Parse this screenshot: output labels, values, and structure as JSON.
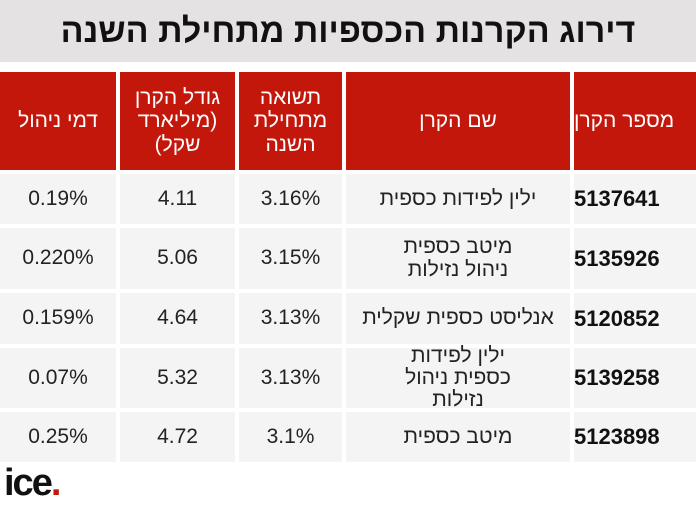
{
  "title": "דירוג הקרנות הכספיות מתחילת השנה",
  "colors": {
    "header": "#c4170c",
    "title_bg": "#e4e2e2",
    "cell_bg": "#f4f4f4"
  },
  "headers": [
    "מספר הקרן",
    "שם הקרן",
    "תשואה מתחילת השנה",
    "גודל הקרן (מיליארד שקל)",
    "דמי ניהול"
  ],
  "rows": [
    {
      "id": "5137641",
      "name": "ילין לפידות כספית",
      "ytd": "3.16%",
      "size": "4.11",
      "fee": "0.19%"
    },
    {
      "id": "5135926",
      "name": "מיטב כספית ניהול נזילות",
      "ytd": "3.15%",
      "size": "5.06",
      "fee": "0.220%"
    },
    {
      "id": "5120852",
      "name": "אנליסט כספית שקלית",
      "ytd": "3.13%",
      "size": "4.64",
      "fee": "0.159%"
    },
    {
      "id": "5139258",
      "name": "ילין לפידות כספית ניהול נזילות",
      "ytd": "3.13%",
      "size": "5.32",
      "fee": "0.07%"
    },
    {
      "id": "5123898",
      "name": "מיטב כספית",
      "ytd": "3.1%",
      "size": "4.72",
      "fee": "0.25%"
    }
  ],
  "logo": "ice."
}
